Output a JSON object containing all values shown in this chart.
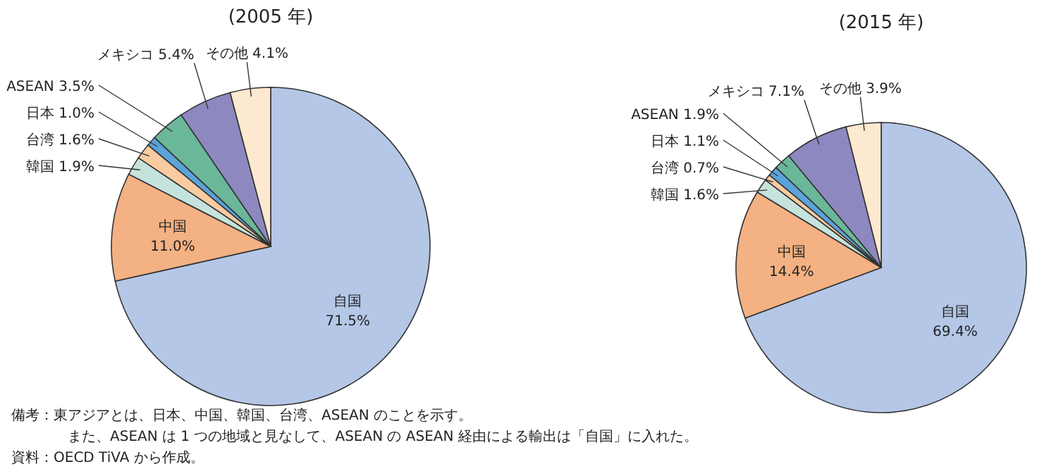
{
  "chart_data": [
    {
      "type": "pie",
      "title": "(2005 年)",
      "categories": [
        "自国",
        "中国",
        "韓国",
        "台湾",
        "日本",
        "ASEAN",
        "メキシコ",
        "その他"
      ],
      "values": [
        71.5,
        11.0,
        1.9,
        1.6,
        1.0,
        3.5,
        5.4,
        4.1
      ],
      "value_labels": [
        "71.5%",
        "11.0%",
        "1.9%",
        "1.6%",
        "1.0%",
        "3.5%",
        "5.4%",
        "4.1%"
      ],
      "colors": [
        "#b4c7e7",
        "#f4b183",
        "#c5e3dc",
        "#f8cba0",
        "#5ba3d9",
        "#6ab79a",
        "#8e88c0",
        "#fde9d0"
      ],
      "annotations": [
        "備考：東アジアとは、日本、中国、韓国、台湾、ASEAN のことを示す。",
        "また、ASEAN は 1 つの地域と見なして、ASEAN の ASEAN 経由による輸出は「自国」に入れた。",
        "資料：OECD TiVA から作成。"
      ]
    },
    {
      "type": "pie",
      "title": "(2015 年)",
      "categories": [
        "自国",
        "中国",
        "韓国",
        "台湾",
        "日本",
        "ASEAN",
        "メキシコ",
        "その他"
      ],
      "values": [
        69.4,
        14.4,
        1.6,
        0.7,
        1.1,
        1.9,
        7.1,
        3.9
      ],
      "value_labels": [
        "69.4%",
        "14.4%",
        "1.6%",
        "0.7%",
        "1.1%",
        "1.9%",
        "7.1%",
        "3.9%"
      ],
      "colors": [
        "#b4c7e7",
        "#f4b183",
        "#c5e3dc",
        "#f8cba0",
        "#5ba3d9",
        "#6ab79a",
        "#8e88c0",
        "#fde9d0"
      ]
    }
  ]
}
